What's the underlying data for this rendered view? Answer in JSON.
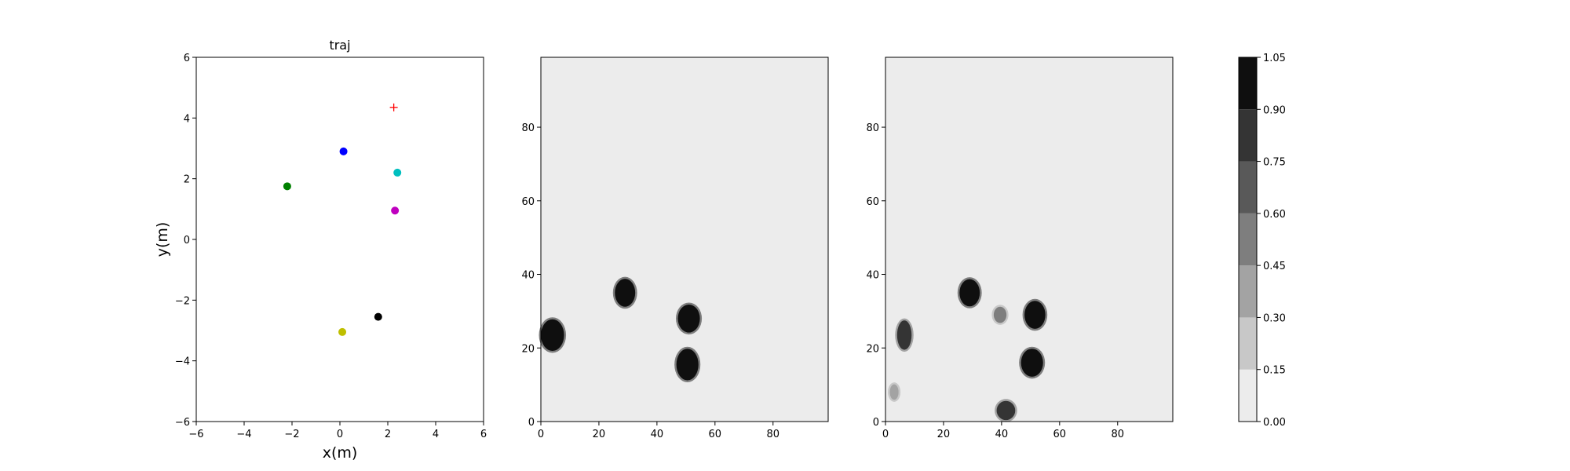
{
  "chart_data": [
    {
      "type": "scatter",
      "title": "traj",
      "xlabel": "x(m)",
      "ylabel": "y(m)",
      "xlim": [
        -6,
        6
      ],
      "ylim": [
        -6,
        6
      ],
      "xticks": [
        "−6",
        "−4",
        "−2",
        "0",
        "2",
        "4",
        "6"
      ],
      "yticks": [
        "−6",
        "−4",
        "−2",
        "0",
        "2",
        "4",
        "6"
      ],
      "grid": false,
      "points": [
        {
          "x": 0.15,
          "y": 2.9,
          "color": "#0000ff",
          "marker": "circle"
        },
        {
          "x": -2.2,
          "y": 1.75,
          "color": "#008000",
          "marker": "circle"
        },
        {
          "x": 2.4,
          "y": 2.2,
          "color": "#00bfbf",
          "marker": "circle"
        },
        {
          "x": 2.3,
          "y": 0.95,
          "color": "#bf00bf",
          "marker": "circle"
        },
        {
          "x": 1.6,
          "y": -2.55,
          "color": "#000000",
          "marker": "circle"
        },
        {
          "x": 0.1,
          "y": -3.05,
          "color": "#bfbf00",
          "marker": "circle"
        },
        {
          "x": 2.25,
          "y": 4.35,
          "color": "#ff0000",
          "marker": "plus"
        }
      ]
    },
    {
      "type": "heatmap",
      "title": "",
      "xlim": [
        0,
        99
      ],
      "ylim": [
        0,
        99
      ],
      "xticks": [
        "0",
        "20",
        "40",
        "60",
        "80"
      ],
      "yticks": [
        "0",
        "20",
        "40",
        "60",
        "80"
      ],
      "background_level": 0.05,
      "blobs": [
        {
          "x": 4,
          "y": 23.5,
          "rx": 4,
          "ry": 4.3,
          "level": 1.0
        },
        {
          "x": 29,
          "y": 35,
          "rx": 3.5,
          "ry": 3.8,
          "level": 1.0
        },
        {
          "x": 51,
          "y": 28,
          "rx": 3.8,
          "ry": 3.8,
          "level": 1.0
        },
        {
          "x": 50.5,
          "y": 15.5,
          "rx": 3.8,
          "ry": 4.3,
          "level": 1.0
        }
      ]
    },
    {
      "type": "heatmap",
      "title": "",
      "xlim": [
        0,
        99
      ],
      "ylim": [
        0,
        99
      ],
      "xticks": [
        "0",
        "20",
        "40",
        "60",
        "80"
      ],
      "yticks": [
        "0",
        "20",
        "40",
        "60",
        "80"
      ],
      "background_level": 0.05,
      "blobs": [
        {
          "x": 6.5,
          "y": 23.5,
          "rx": 2.5,
          "ry": 4,
          "level": 0.85
        },
        {
          "x": 29,
          "y": 35,
          "rx": 3.5,
          "ry": 3.7,
          "level": 1.0
        },
        {
          "x": 39.5,
          "y": 29,
          "rx": 2.2,
          "ry": 2.2,
          "level": 0.55
        },
        {
          "x": 51.5,
          "y": 29,
          "rx": 3.6,
          "ry": 3.8,
          "level": 1.0
        },
        {
          "x": 50.5,
          "y": 16,
          "rx": 3.8,
          "ry": 3.8,
          "level": 1.0
        },
        {
          "x": 41.5,
          "y": 3,
          "rx": 3.2,
          "ry": 2.6,
          "level": 0.75
        },
        {
          "x": 3,
          "y": 8,
          "rx": 1.5,
          "ry": 2.1,
          "level": 0.3
        }
      ]
    }
  ],
  "colorbar": {
    "levels": [
      0.0,
      0.15,
      0.3,
      0.45,
      0.6,
      0.75,
      0.9,
      1.05
    ],
    "labels": [
      "0.00",
      "0.15",
      "0.30",
      "0.45",
      "0.60",
      "0.75",
      "0.90",
      "1.05"
    ],
    "colors": [
      "#ececec",
      "#c8c8c8",
      "#a3a3a3",
      "#7e7e7e",
      "#595959",
      "#343434",
      "#0f0f0f"
    ]
  }
}
